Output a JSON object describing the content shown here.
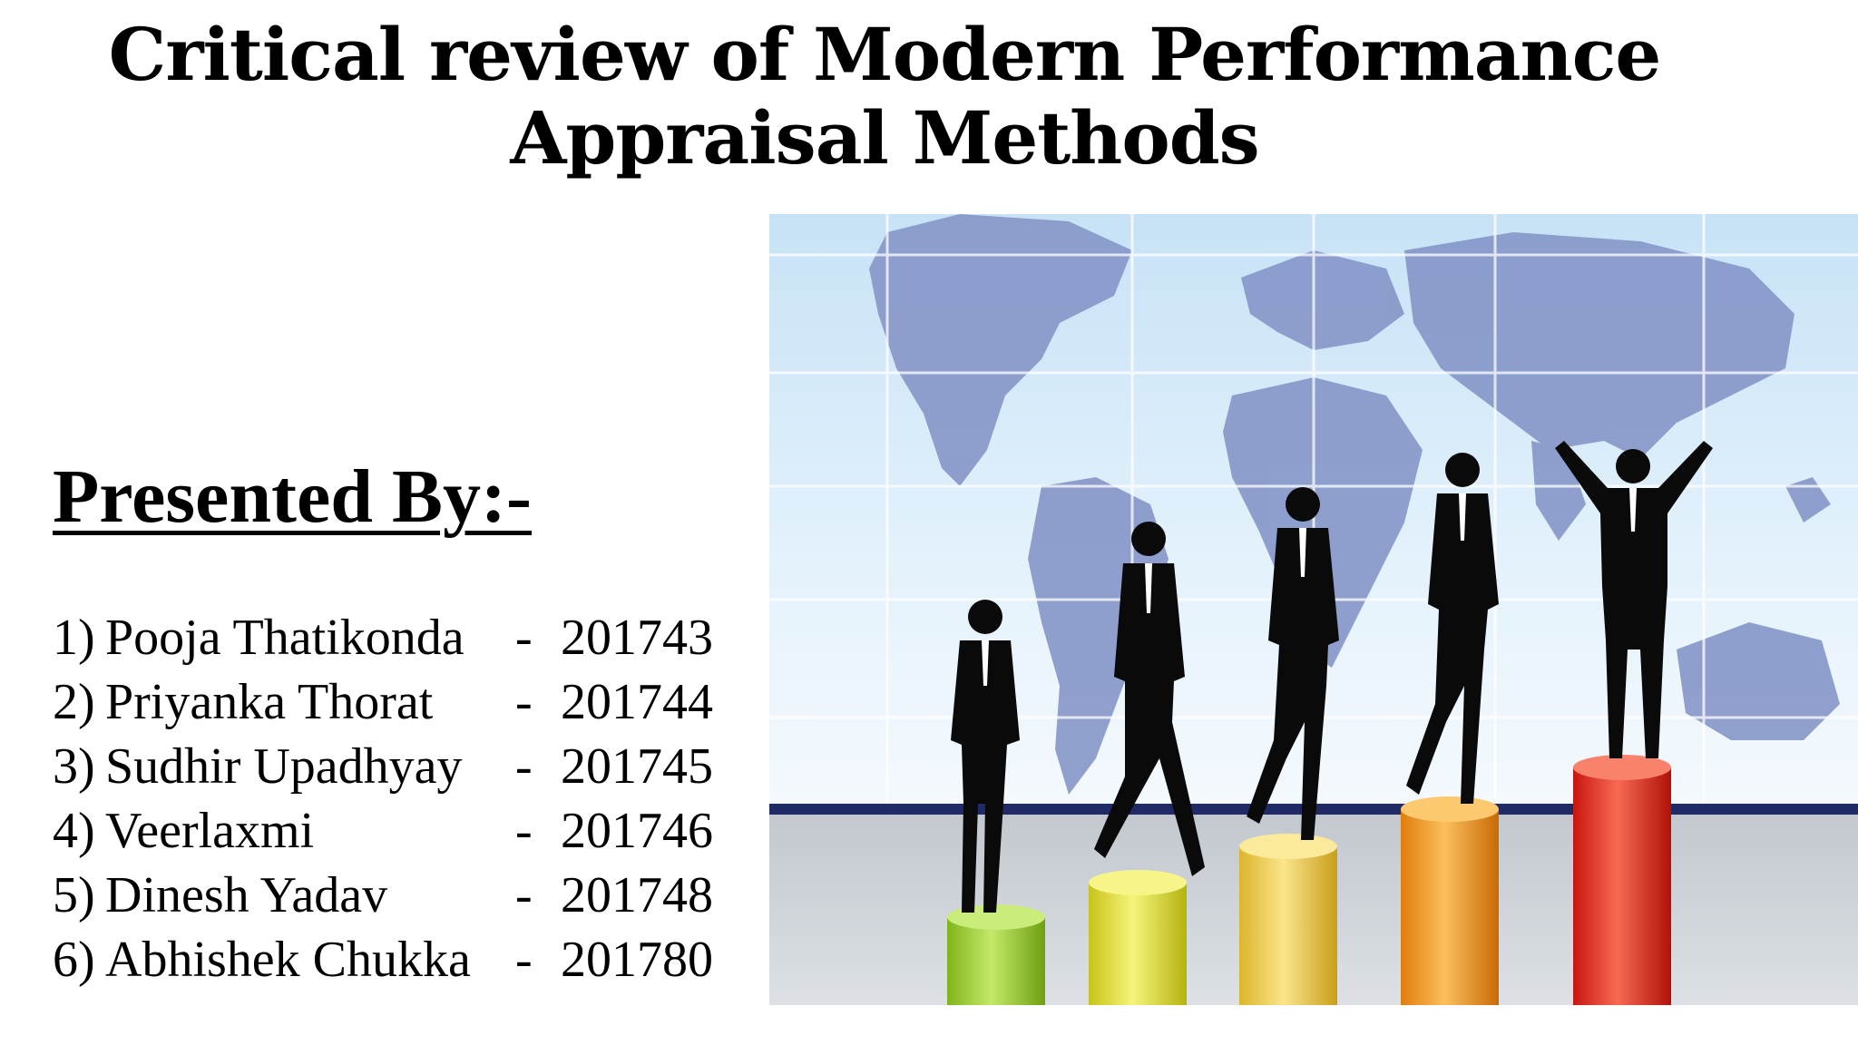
{
  "slide": {
    "title_line1": "Critical review of  Modern Performance",
    "title_line2": "Appraisal Methods",
    "presented_by": "Presented By:-",
    "members": [
      {
        "num": "1)",
        "name": "Pooja Thatikonda",
        "dash": "-",
        "roll": "201743"
      },
      {
        "num": "2)",
        "name": "Priyanka Thorat",
        "dash": "-",
        "roll": "201744"
      },
      {
        "num": "3)",
        "name": "Sudhir Upadhyay",
        "dash": "-",
        "roll": "201745"
      },
      {
        "num": "4)",
        "name": "Veerlaxmi",
        "dash": "-",
        "roll": "201746"
      },
      {
        "num": "5)",
        "name": "Dinesh Yadav",
        "dash": "-",
        "roll": "201748"
      },
      {
        "num": "6)",
        "name": "Abhishek Chukka",
        "dash": "-",
        "roll": "201780"
      }
    ]
  },
  "illustration": {
    "icon": "business-growth-illustration",
    "pillar_colors": [
      "#9fcf2a",
      "#e3e02a",
      "#f3cf4a",
      "#f39a1c",
      "#e8231a"
    ],
    "sky_color": "#d6ecfa",
    "map_color": "#7f93c9"
  }
}
